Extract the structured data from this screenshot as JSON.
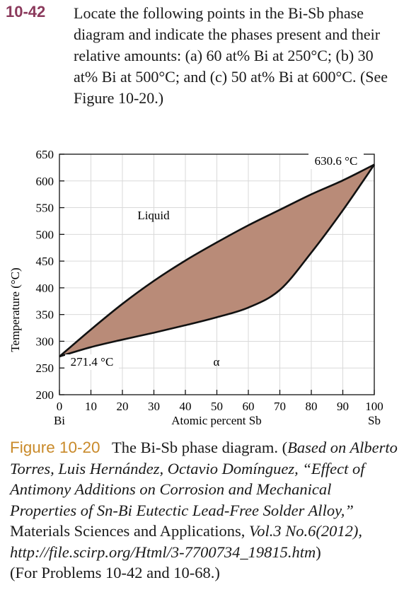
{
  "problem": {
    "number": "10-42",
    "text": "Locate the following points in the Bi-Sb phase diagram and indicate the phases present and their relative amounts: (a) 60 at% Bi at 250°C; (b) 30 at% Bi at 500°C; and (c) 50 at% Bi at 600°C. (See Figure 10-20.)"
  },
  "chart_data": {
    "type": "area",
    "xlabel": "Atomic percent Sb",
    "ylabel": "Temperature (°C)",
    "xlim": [
      0,
      100
    ],
    "ylim": [
      200,
      650
    ],
    "x_ticks": [
      0,
      10,
      20,
      30,
      40,
      50,
      60,
      70,
      80,
      90,
      100
    ],
    "y_ticks": [
      200,
      250,
      300,
      350,
      400,
      450,
      500,
      550,
      600,
      650
    ],
    "x_end_labels": {
      "left": "Bi",
      "right": "Sb"
    },
    "grid": true,
    "region_fill": "#b98b78",
    "liquidus": {
      "x": [
        0,
        10,
        20,
        30,
        40,
        50,
        60,
        70,
        80,
        90,
        100
      ],
      "y": [
        271.4,
        322,
        370,
        413,
        451,
        485,
        517,
        546,
        575,
        601,
        630.6
      ]
    },
    "solidus": {
      "x": [
        0,
        10,
        20,
        30,
        40,
        50,
        60,
        70,
        80,
        90,
        100
      ],
      "y": [
        271.4,
        289,
        303,
        316,
        330,
        345,
        363,
        396,
        466,
        545,
        630.6
      ]
    },
    "labels": {
      "liquid": "Liquid",
      "alpha": "α",
      "sb_melt": "630.6 °C",
      "bi_melt": "271.4 °C"
    }
  },
  "caption": {
    "fig_label": "Figure 10-20",
    "title": "The Bi-Sb phase diagram. (",
    "based_on": "Based on Alberto Torres, Luis Hernández, Octavio Domínguez, “Effect of Antimony Additions on Corrosion and Mechanical Properties of Sn-Bi Eutectic Lead-Free Solder Alloy,”",
    "journal": " Materials Sciences and Applications, ",
    "volume": "Vol.3 No.6(2012), http://file.scirp.org/Html/3-7700734_19815.htm",
    "closing": ")",
    "problems": "(For Problems 10-42 and 10-68.)"
  }
}
